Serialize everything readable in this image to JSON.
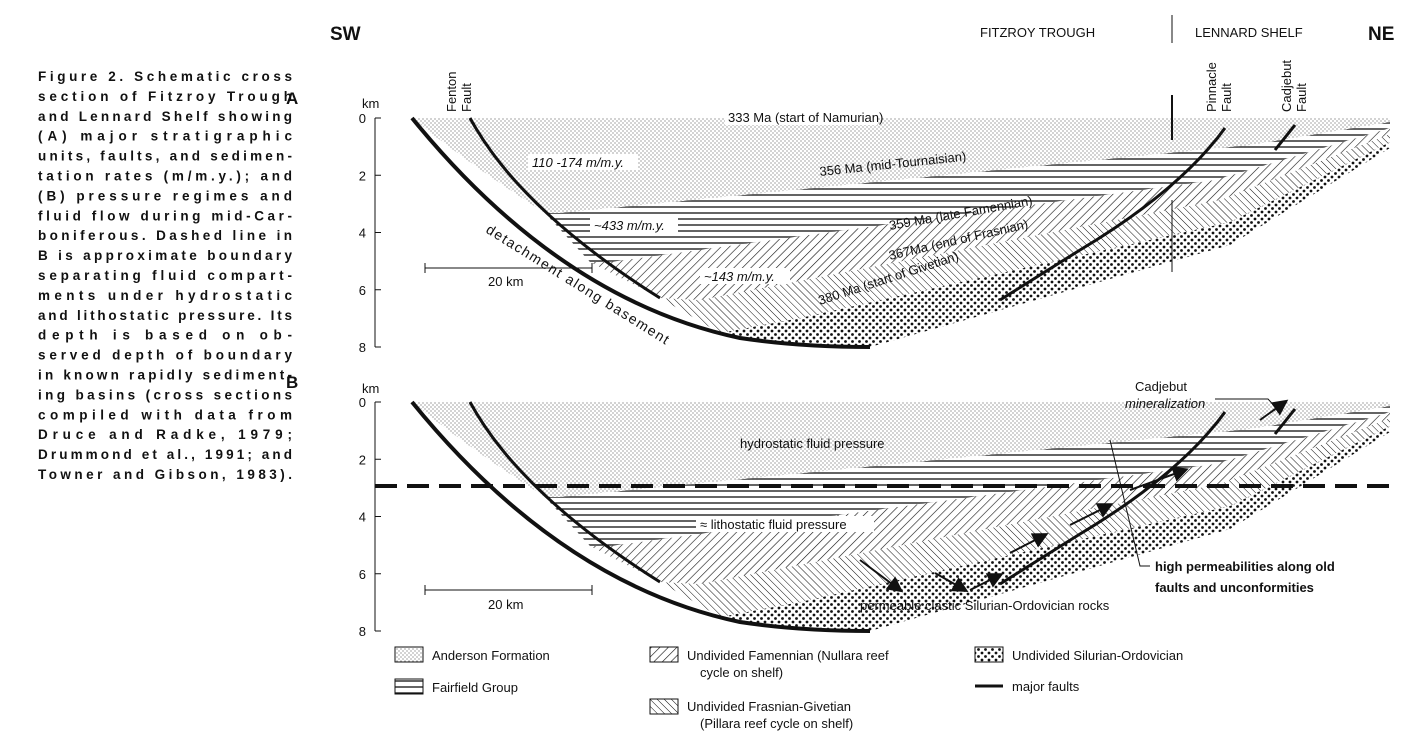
{
  "caption": {
    "lines": [
      "Figure 2. Schematic cross",
      "section of Fitzroy Trough",
      "and Lennard Shelf showing",
      "(A) major stratigraphic",
      "units, faults, and sedimen-",
      "tation rates (m/m.y.); and",
      "(B) pressure regimes and",
      "fluid flow during mid-Car-",
      "boniferous. Dashed line in",
      "B is approximate boundary",
      "separating fluid compart-",
      "ments under hydrostatic",
      "and lithostatic pressure. Its",
      "depth is based on ob-",
      "served depth of boundary",
      "in known rapidly sediment-",
      "ing basins (cross sections",
      "compiled with data from",
      "Druce and Radke, 1979;",
      "Drummond et al., 1991; and",
      "Towner and Gibson, 1983)."
    ]
  },
  "header": {
    "sw": "SW",
    "trough": "FITZROY TROUGH",
    "shelf": "LENNARD SHELF",
    "ne": "NE"
  },
  "panels": [
    {
      "label": "A",
      "unit": "km",
      "depth_ticks": [
        0,
        2,
        4,
        6,
        8
      ],
      "scale": "20 km",
      "faults": {
        "fenton": [
          "Fenton",
          "Fault"
        ],
        "pinnacle": [
          "Pinnacle",
          "Fault"
        ],
        "cadjebut": [
          "Cadjebut",
          "Fault"
        ]
      },
      "horizons": [
        "333 Ma (start of Namurian)",
        "356 Ma (mid-Tournaisian)",
        "359 Ma (late Famennian)",
        "367Ma (end of Frasnian)",
        "380 Ma (start of Givetian)"
      ],
      "rates": [
        "110 -174 m/m.y.",
        "~433 m/m.y.",
        "~143 m/m.y."
      ],
      "detachment": "detachment along basement"
    },
    {
      "label": "B",
      "unit": "km",
      "depth_ticks": [
        0,
        2,
        4,
        6,
        8
      ],
      "scale": "20 km",
      "mineralization": [
        "Cadjebut",
        "mineralization"
      ],
      "hydrostatic": "hydrostatic fluid pressure",
      "lithostatic": "≈ lithostatic fluid pressure",
      "permeability": [
        "high permeabilities along old",
        "faults and unconformities"
      ],
      "clastic": "permeable clastic Silurian-Ordovician rocks"
    }
  ],
  "legend": {
    "anderson": "Anderson Formation",
    "fairfield": "Fairfield Group",
    "famennian": [
      "Undivided Famennian (Nullara reef",
      "cycle on shelf)"
    ],
    "frasnian": [
      "Undivided Frasnian-Givetian",
      "(Pillara reef cycle on shelf)"
    ],
    "silurian": "Undivided Silurian-Ordovician",
    "faults": "major faults"
  }
}
